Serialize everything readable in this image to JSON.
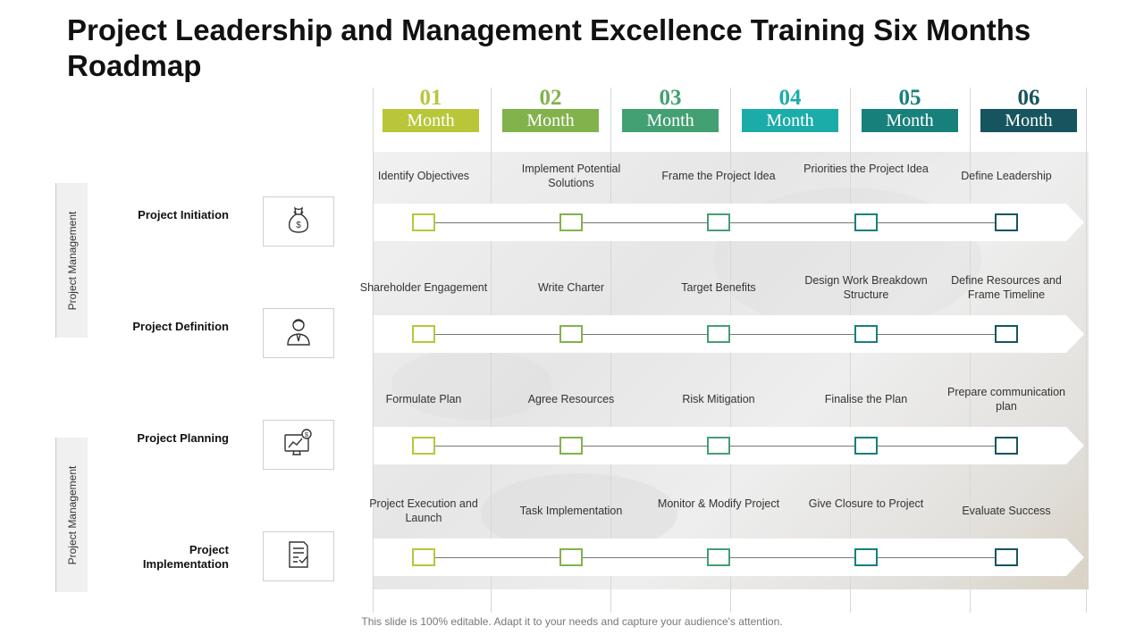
{
  "title": "Project Leadership and Management Excellence Training Six Months Roadmap",
  "colors": {
    "m1": "#b9c63a",
    "m2": "#82b24c",
    "m3": "#43a072",
    "m4": "#1bacaa",
    "m5": "#17807b",
    "m6": "#16555f"
  },
  "months": [
    {
      "num": "01",
      "label": "Month"
    },
    {
      "num": "02",
      "label": "Month"
    },
    {
      "num": "03",
      "label": "Month"
    },
    {
      "num": "04",
      "label": "Month"
    },
    {
      "num": "05",
      "label": "Month"
    },
    {
      "num": "06",
      "label": "Month"
    }
  ],
  "side_tabs": [
    "Project Management",
    "Project Management"
  ],
  "rows": [
    {
      "label": "Project Initiation",
      "icon": "money-bag-icon",
      "tasks": [
        "Identify Objectives",
        "Implement Potential Solutions",
        "Frame the Project Idea",
        "Priorities the Project Idea",
        "Define Leadership"
      ]
    },
    {
      "label": "Project Definition",
      "icon": "businessman-icon",
      "tasks": [
        "Shareholder Engagement",
        "Write Charter",
        "Target Benefits",
        "Design Work Breakdown Structure",
        "Define Resources and Frame Timeline"
      ]
    },
    {
      "label": "Project Planning",
      "icon": "monitor-chart-icon",
      "tasks": [
        "Formulate Plan",
        "Agree Resources",
        "Risk Mitigation",
        "Finalise the Plan",
        "Prepare communication plan"
      ]
    },
    {
      "label": "Project Implementation",
      "icon": "checklist-document-icon",
      "tasks": [
        "Project Execution and Launch",
        "Task Implementation",
        "Monitor & Modify Project",
        "Give Closure to Project",
        "Evaluate Success"
      ]
    }
  ],
  "footer": "This slide is 100% editable. Adapt it to your needs and capture your audience's attention."
}
